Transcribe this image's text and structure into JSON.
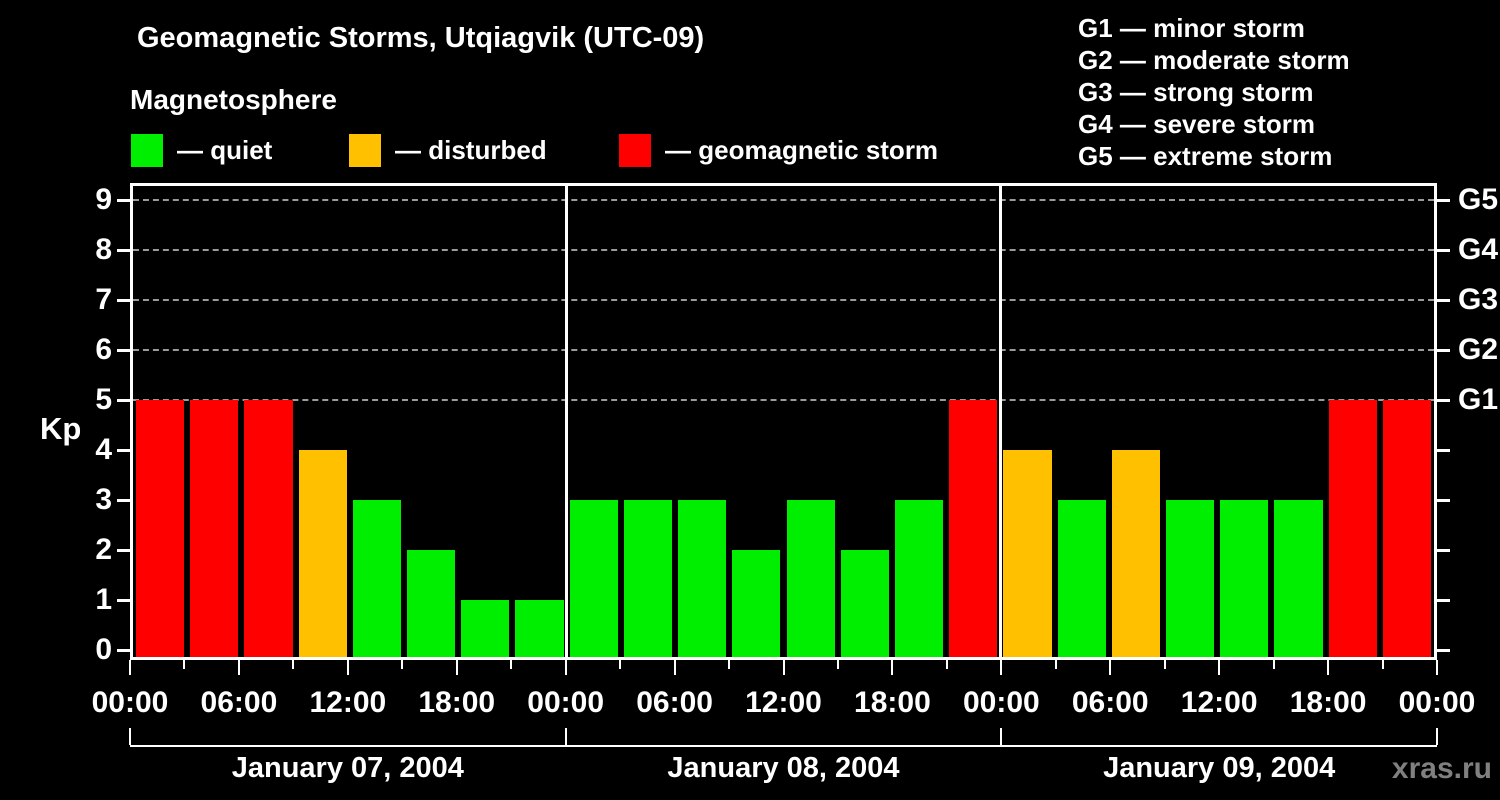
{
  "header": {
    "title": "Geomagnetic Storms, Utqiagvik (UTC-09)",
    "subtitle": "Magnetosphere",
    "watermark": "xras.ru"
  },
  "condition_legend": {
    "items": [
      {
        "key": "quiet",
        "label": "— quiet",
        "color": "#00ee00"
      },
      {
        "key": "disturbed",
        "label": "— disturbed",
        "color": "#ffc000"
      },
      {
        "key": "storm",
        "label": "— geomagnetic storm",
        "color": "#ff0000"
      }
    ]
  },
  "storm_scale_legend": {
    "items": [
      "G1 — minor storm",
      "G2 — moderate storm",
      "G3 — strong storm",
      "G4 — severe storm",
      "G5 — extreme storm"
    ]
  },
  "chart_data": {
    "type": "bar",
    "title": "Geomagnetic Storms, Utqiagvik (UTC-09)",
    "subtitle": "Magnetosphere",
    "ylabel": "Kp",
    "ylim": [
      0,
      9
    ],
    "yticks": [
      0,
      1,
      2,
      3,
      4,
      5,
      6,
      7,
      8,
      9
    ],
    "gridlines_at": [
      5,
      6,
      7,
      8,
      9
    ],
    "grid_style": "dashed",
    "bar_interval_hours": 3,
    "x_tick_every_hours": 3,
    "x_label_every_hours": 6,
    "x_time_labels": [
      "00:00",
      "06:00",
      "12:00",
      "18:00",
      "00:00",
      "06:00",
      "12:00",
      "18:00",
      "00:00",
      "06:00",
      "12:00",
      "18:00",
      "00:00"
    ],
    "right_axis": [
      {
        "kp": 5,
        "label": "G1"
      },
      {
        "kp": 6,
        "label": "G2"
      },
      {
        "kp": 7,
        "label": "G3"
      },
      {
        "kp": 8,
        "label": "G4"
      },
      {
        "kp": 9,
        "label": "G5"
      }
    ],
    "days": [
      {
        "date": "January 07, 2004",
        "values": [
          5,
          5,
          5,
          4,
          3,
          2,
          1,
          1
        ]
      },
      {
        "date": "January 08, 2004",
        "values": [
          3,
          3,
          3,
          2,
          3,
          2,
          3,
          5
        ]
      },
      {
        "date": "January 09, 2004",
        "values": [
          4,
          3,
          4,
          3,
          3,
          3,
          5,
          5
        ]
      }
    ],
    "colors": {
      "quiet": "#00ee00",
      "disturbed": "#ffc000",
      "storm": "#ff0000"
    },
    "color_rule": "Kp<=3 quiet, Kp=4 disturbed, Kp>=5 storm"
  }
}
